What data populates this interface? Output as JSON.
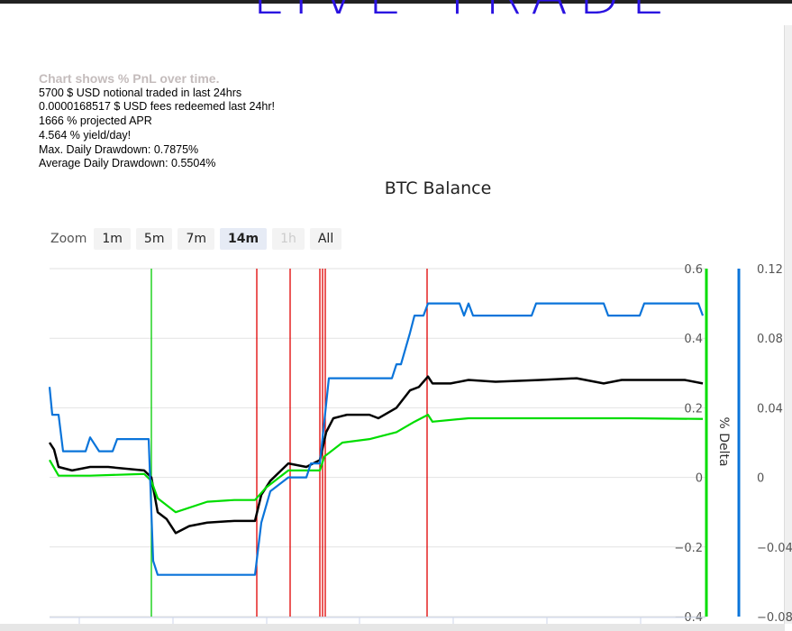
{
  "header": {
    "title": "LIVE TRADE"
  },
  "info": {
    "lead": "Chart shows % PnL over time.",
    "lines": [
      "5700 $ USD notional traded in last 24hrs",
      "0.0000168517 $ USD fees redeemed last 24hr!",
      "1666 % projected APR",
      "4.564 % yield/day!",
      "Max. Daily Drawdown: 0.7875%",
      "Average Daily Drawdown: 0.5504%"
    ]
  },
  "zoom": {
    "label": "Zoom",
    "buttons": [
      "1m",
      "5m",
      "7m",
      "14m",
      "1h",
      "All"
    ],
    "selected": "14m",
    "disabled": "1h"
  },
  "chart_data": {
    "type": "line",
    "title": "BTC Balance",
    "ylabel_right": "% Delta",
    "x_range": [
      0,
      728
    ],
    "left_axis": {
      "ylim": [
        -0.4,
        0.6
      ],
      "ticks": [
        "0.6",
        "0.4",
        "0.2",
        "0",
        "−0.2",
        "−0.4"
      ],
      "tick_values": [
        0.6,
        0.4,
        0.2,
        0,
        -0.2,
        -0.4
      ],
      "color": "#00dd00"
    },
    "right_axis": {
      "ylim": [
        -0.08,
        0.12
      ],
      "ticks": [
        "0.12",
        "0.08",
        "0.04",
        "0",
        "−0.04",
        "−0.08"
      ],
      "tick_values": [
        0.12,
        0.08,
        0.04,
        0,
        -0.04,
        -0.08
      ],
      "color": "#0a74da"
    },
    "x_ticks": [
      33,
      137,
      241,
      344,
      448,
      552,
      656
    ],
    "series": [
      {
        "name": "black",
        "axis": "left",
        "color": "#000000",
        "points": [
          [
            0,
            0.1
          ],
          [
            5,
            0.08
          ],
          [
            10,
            0.03
          ],
          [
            25,
            0.02
          ],
          [
            45,
            0.03
          ],
          [
            65,
            0.03
          ],
          [
            105,
            0.02
          ],
          [
            113,
            0
          ],
          [
            120,
            -0.1
          ],
          [
            130,
            -0.12
          ],
          [
            140,
            -0.16
          ],
          [
            155,
            -0.14
          ],
          [
            175,
            -0.13
          ],
          [
            205,
            -0.125
          ],
          [
            228,
            -0.125
          ],
          [
            235,
            -0.05
          ],
          [
            245,
            -0.01
          ],
          [
            265,
            0.04
          ],
          [
            285,
            0.03
          ],
          [
            300,
            0.05
          ],
          [
            307,
            0.13
          ],
          [
            315,
            0.17
          ],
          [
            330,
            0.18
          ],
          [
            355,
            0.18
          ],
          [
            365,
            0.17
          ],
          [
            385,
            0.2
          ],
          [
            400,
            0.25
          ],
          [
            410,
            0.26
          ],
          [
            420,
            0.29
          ],
          [
            425,
            0.27
          ],
          [
            445,
            0.27
          ],
          [
            465,
            0.28
          ],
          [
            495,
            0.275
          ],
          [
            545,
            0.28
          ],
          [
            585,
            0.285
          ],
          [
            615,
            0.27
          ],
          [
            635,
            0.28
          ],
          [
            665,
            0.28
          ],
          [
            705,
            0.28
          ],
          [
            725,
            0.27
          ]
        ]
      },
      {
        "name": "green",
        "axis": "left",
        "color": "#00dd00",
        "points": [
          [
            0,
            0.05
          ],
          [
            10,
            0.005
          ],
          [
            45,
            0.005
          ],
          [
            105,
            0.01
          ],
          [
            113,
            -0.01
          ],
          [
            120,
            -0.06
          ],
          [
            140,
            -0.1
          ],
          [
            175,
            -0.07
          ],
          [
            205,
            -0.065
          ],
          [
            228,
            -0.065
          ],
          [
            240,
            -0.03
          ],
          [
            265,
            0.02
          ],
          [
            300,
            0.02
          ],
          [
            305,
            0.06
          ],
          [
            325,
            0.1
          ],
          [
            355,
            0.11
          ],
          [
            385,
            0.13
          ],
          [
            405,
            0.16
          ],
          [
            420,
            0.18
          ],
          [
            425,
            0.16
          ],
          [
            465,
            0.17
          ],
          [
            545,
            0.17
          ],
          [
            645,
            0.17
          ],
          [
            725,
            0.168
          ]
        ]
      },
      {
        "name": "blue",
        "axis": "right",
        "color": "#0a74da",
        "points": [
          [
            0,
            0.052
          ],
          [
            3,
            0.036
          ],
          [
            10,
            0.036
          ],
          [
            15,
            0.015
          ],
          [
            40,
            0.015
          ],
          [
            45,
            0.023
          ],
          [
            55,
            0.015
          ],
          [
            70,
            0.015
          ],
          [
            75,
            0.022
          ],
          [
            110,
            0.022
          ],
          [
            115,
            -0.048
          ],
          [
            120,
            -0.056
          ],
          [
            228,
            -0.056
          ],
          [
            235,
            -0.026
          ],
          [
            245,
            -0.008
          ],
          [
            265,
            0
          ],
          [
            285,
            0
          ],
          [
            290,
            0.008
          ],
          [
            300,
            0.008
          ],
          [
            310,
            0.057
          ],
          [
            380,
            0.057
          ],
          [
            385,
            0.065
          ],
          [
            390,
            0.065
          ],
          [
            400,
            0.083
          ],
          [
            405,
            0.093
          ],
          [
            415,
            0.093
          ],
          [
            420,
            0.1
          ],
          [
            455,
            0.1
          ],
          [
            460,
            0.093
          ],
          [
            465,
            0.1
          ],
          [
            470,
            0.093
          ],
          [
            535,
            0.093
          ],
          [
            540,
            0.1
          ],
          [
            615,
            0.1
          ],
          [
            620,
            0.093
          ],
          [
            655,
            0.093
          ],
          [
            660,
            0.1
          ],
          [
            720,
            0.1
          ],
          [
            725,
            0.093
          ]
        ]
      }
    ],
    "markers": [
      {
        "x": 113,
        "color": "#00cc00"
      },
      {
        "x": 230,
        "color": "#e00000"
      },
      {
        "x": 267,
        "color": "#e00000"
      },
      {
        "x": 300,
        "color": "#e00000"
      },
      {
        "x": 303,
        "color": "#e00000"
      },
      {
        "x": 306,
        "color": "#e00000"
      },
      {
        "x": 419,
        "color": "#e00000"
      }
    ]
  }
}
